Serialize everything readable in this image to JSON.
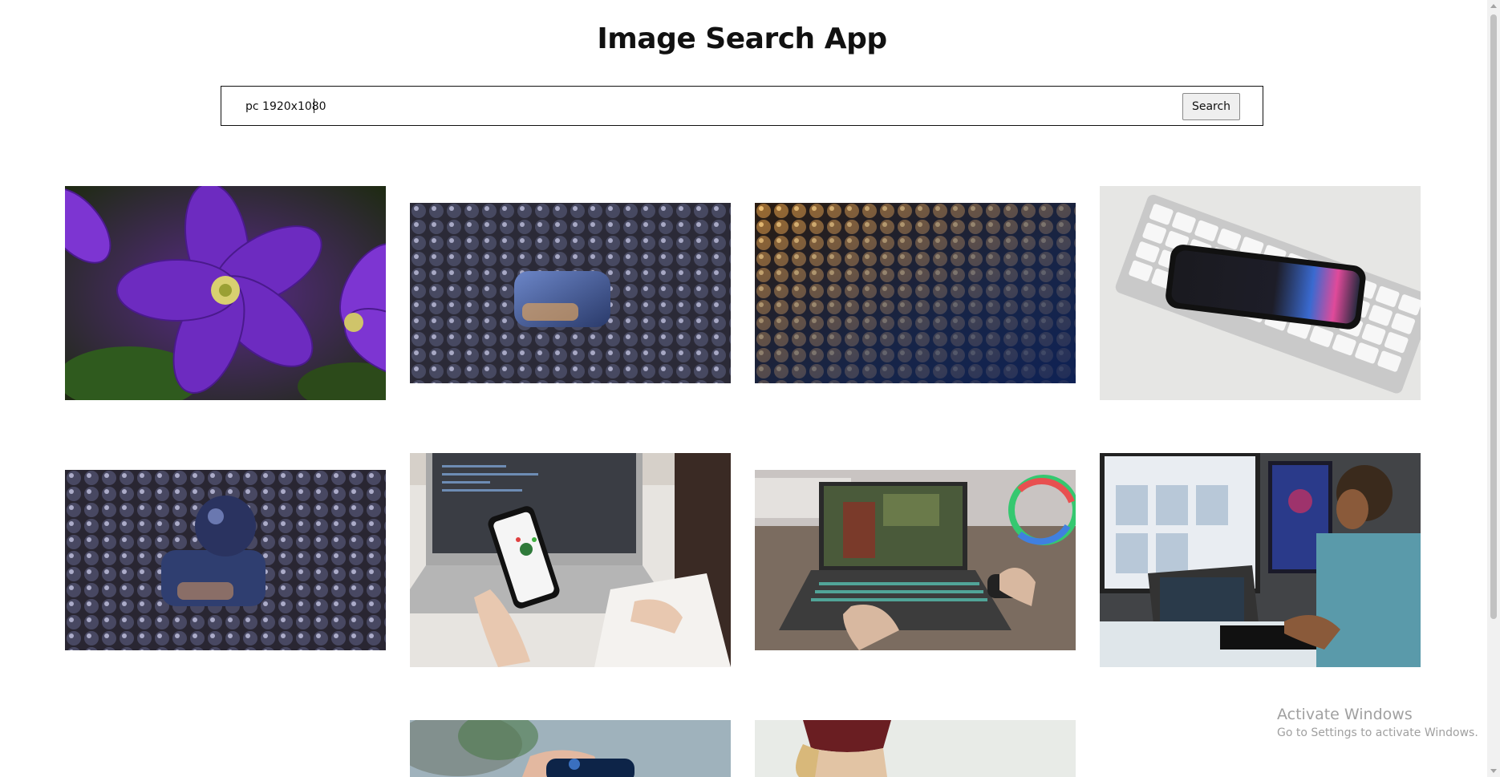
{
  "app": {
    "title": "Image Search App"
  },
  "search": {
    "value": "pc 1920x1080",
    "button_label": "Search"
  },
  "results": [
    {
      "name": "purple-clematis-flower-image"
    },
    {
      "name": "dark-spheres-with-cube-image"
    },
    {
      "name": "orange-blue-spheres-image"
    },
    {
      "name": "smartphone-on-keyboard-image"
    },
    {
      "name": "dark-spheres-with-joystick-image"
    },
    {
      "name": "hand-holding-phone-laptop-image"
    },
    {
      "name": "gaming-laptop-on-desk-image"
    },
    {
      "name": "man-at-computer-desk-image"
    },
    {
      "name": "hand-with-game-controller-image"
    },
    {
      "name": "person-with-red-beanie-image"
    }
  ],
  "watermark": {
    "title": "Activate Windows",
    "subtitle": "Go to Settings to activate Windows."
  }
}
